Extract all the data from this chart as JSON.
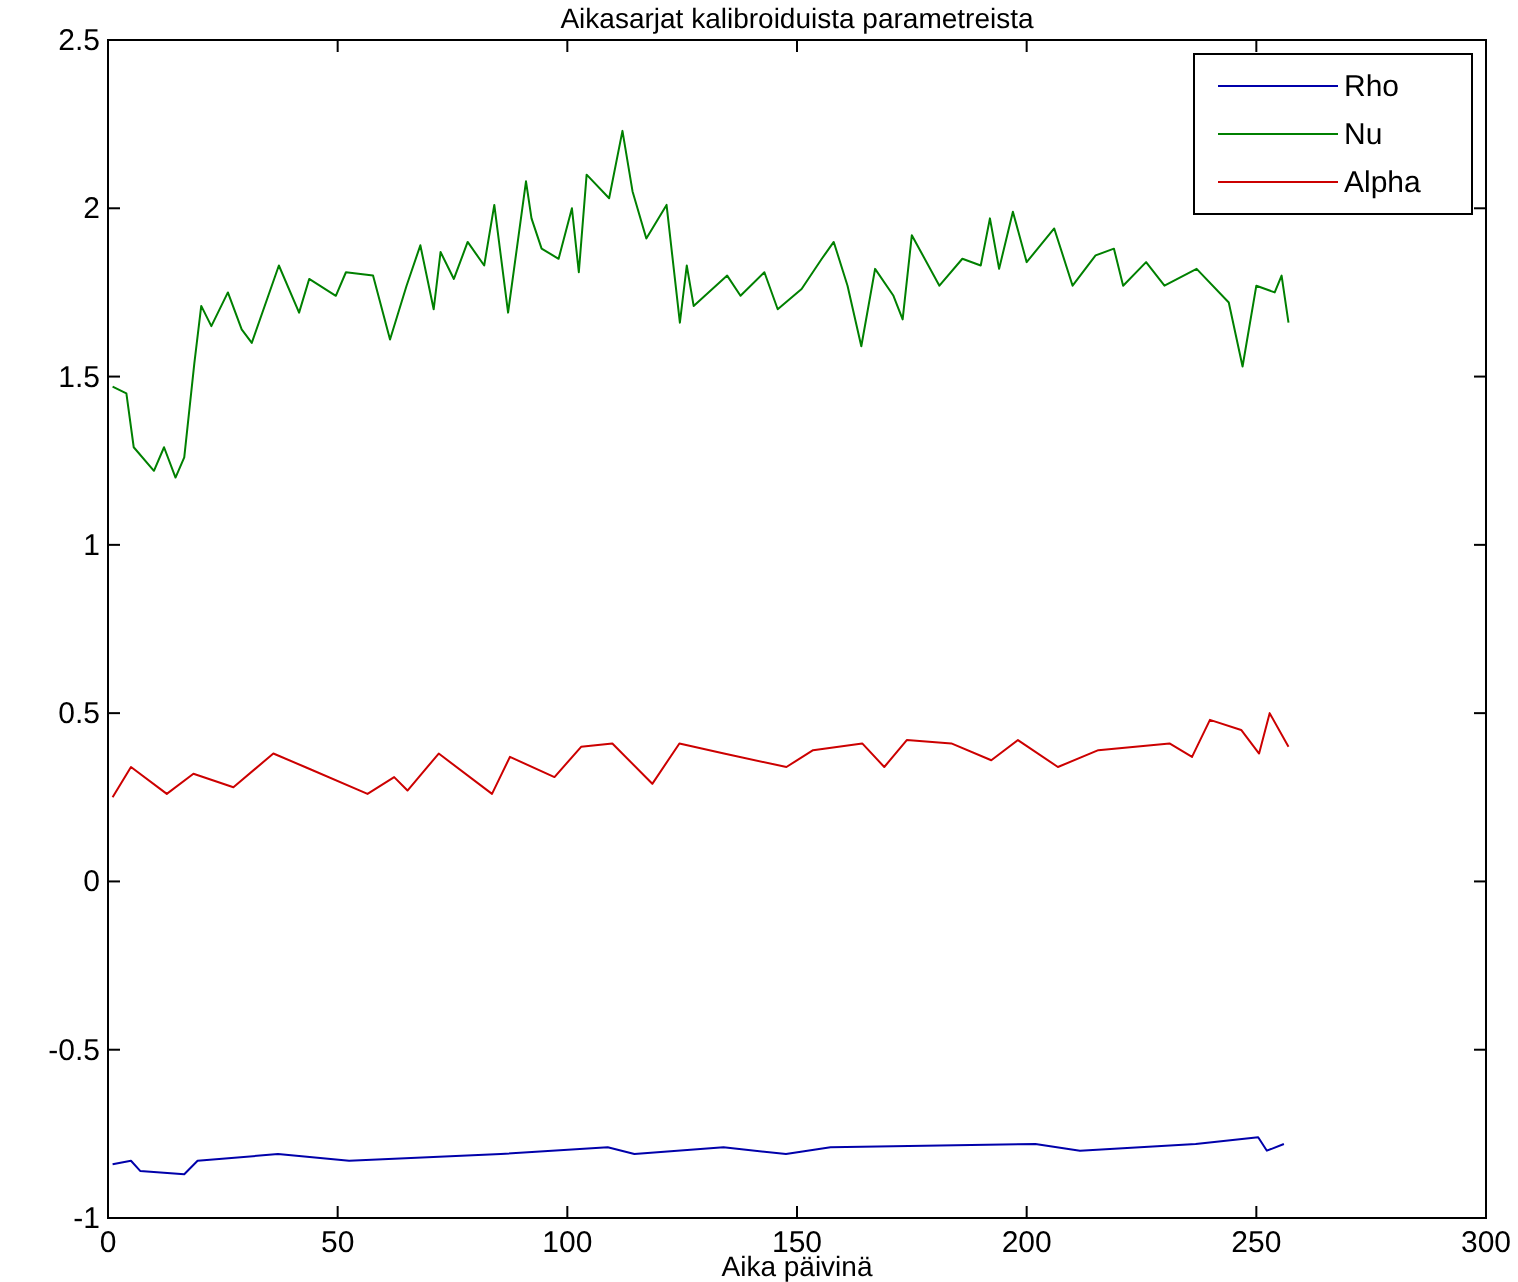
{
  "chart_data": {
    "type": "line",
    "title": "Aikasarjat kalibroiduista parametreista",
    "xlabel": "Aika päivinä",
    "xlim": [
      0,
      300
    ],
    "xticks": [
      0,
      50,
      100,
      150,
      200,
      250,
      300
    ],
    "ylim": [
      -1,
      2.5
    ],
    "yticks": [
      -1,
      -0.5,
      0,
      0.5,
      1,
      1.5,
      2,
      2.5
    ],
    "grid": false,
    "legend": "top right",
    "marker": "none",
    "line_style": "solid",
    "series": [
      {
        "name": "Rho",
        "color": "#0000aa",
        "x": [
          1,
          5,
          7,
          16.6,
          19.5,
          37,
          52.5,
          85.5,
          108.8,
          114.6,
          134,
          147.6,
          157.3,
          201.9,
          211.6,
          236.8,
          250.4,
          252.3,
          256
        ],
        "values": [
          -0.84,
          -0.83,
          -0.86,
          -0.87,
          -0.83,
          -0.81,
          -0.83,
          -0.81,
          -0.79,
          -0.81,
          -0.79,
          -0.81,
          -0.79,
          -0.78,
          -0.8,
          -0.78,
          -0.76,
          -0.8,
          -0.78
        ]
      },
      {
        "name": "Nu",
        "color": "#008000",
        "x": [
          1,
          4,
          5.6,
          10,
          12.2,
          14.7,
          16.6,
          18.8,
          20.3,
          22.5,
          26.1,
          29.1,
          31.3,
          37.2,
          41.6,
          43.8,
          49.6,
          51.8,
          57.7,
          61.4,
          65,
          68,
          70.9,
          72.4,
          75.3,
          78.3,
          81.9,
          84.1,
          87.1,
          91,
          92.2,
          94.4,
          98.1,
          101,
          102.5,
          104.2,
          109.1,
          112,
          114.2,
          117.2,
          121.6,
          124.5,
          126,
          127.5,
          134.8,
          137.7,
          142.9,
          145.8,
          151,
          155.4,
          158,
          161,
          164,
          167,
          171,
          173,
          175,
          181,
          186,
          190,
          192,
          194,
          197,
          200,
          206,
          210,
          215,
          219,
          221,
          226,
          230,
          237,
          244,
          247,
          250,
          254,
          255.5,
          257
        ],
        "values": [
          1.47,
          1.45,
          1.29,
          1.22,
          1.29,
          1.2,
          1.26,
          1.54,
          1.71,
          1.65,
          1.75,
          1.64,
          1.6,
          1.83,
          1.69,
          1.79,
          1.74,
          1.81,
          1.8,
          1.61,
          1.77,
          1.89,
          1.7,
          1.87,
          1.79,
          1.9,
          1.83,
          2.01,
          1.69,
          2.08,
          1.97,
          1.88,
          1.85,
          2,
          1.81,
          2.1,
          2.03,
          2.23,
          2.05,
          1.91,
          2.01,
          1.66,
          1.83,
          1.71,
          1.8,
          1.74,
          1.81,
          1.7,
          1.76,
          1.85,
          1.9,
          1.77,
          1.59,
          1.82,
          1.74,
          1.67,
          1.92,
          1.77,
          1.85,
          1.83,
          1.97,
          1.82,
          1.99,
          1.84,
          1.94,
          1.77,
          1.86,
          1.88,
          1.77,
          1.84,
          1.77,
          1.82,
          1.72,
          1.53,
          1.77,
          1.75,
          1.8,
          1.66
        ]
      },
      {
        "name": "Alpha",
        "color": "#cc0000",
        "x": [
          1,
          5,
          12.8,
          18.6,
          27.3,
          36,
          42.9,
          56.5,
          62.3,
          65.2,
          72,
          83.6,
          87.5,
          97.2,
          103,
          109.8,
          118.5,
          124.4,
          134.1,
          147.7,
          153.5,
          164.2,
          169,
          173.9,
          183.6,
          192.3,
          198.1,
          206.8,
          215.6,
          231.1,
          236,
          239.9,
          246.7,
          250.6,
          252.9,
          257
        ],
        "values": [
          0.25,
          0.34,
          0.26,
          0.32,
          0.28,
          0.38,
          0.34,
          0.26,
          0.31,
          0.27,
          0.38,
          0.26,
          0.37,
          0.31,
          0.4,
          0.41,
          0.29,
          0.41,
          0.38,
          0.34,
          0.39,
          0.41,
          0.34,
          0.42,
          0.41,
          0.36,
          0.42,
          0.34,
          0.39,
          0.41,
          0.37,
          0.48,
          0.45,
          0.38,
          0.5,
          0.4
        ]
      }
    ]
  }
}
